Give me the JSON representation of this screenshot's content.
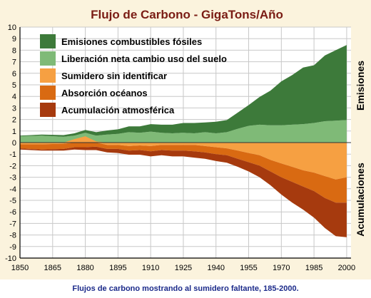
{
  "caption": "Flujos de carbono mostrando al sumidero faltante, 185-2000.",
  "chart_data": {
    "type": "area",
    "title": "Flujo de Carbono - GigaTons/Año",
    "xlabel": "",
    "ylabel": "",
    "side_labels": {
      "top": "Emisiones",
      "bottom": "Acumulaciones"
    },
    "xlim": [
      1850,
      2002
    ],
    "ylim": [
      -10,
      10
    ],
    "x_ticks": [
      1850,
      1865,
      1880,
      1895,
      1910,
      1925,
      1940,
      1955,
      1970,
      1985,
      2000
    ],
    "y_ticks": [
      10,
      9,
      8,
      7,
      6,
      5,
      4,
      3,
      2,
      1,
      0,
      -1,
      -2,
      -3,
      -4,
      -5,
      -6,
      -7,
      -8,
      -9,
      -10
    ],
    "legend_position": "top-left",
    "x": [
      1850,
      1860,
      1870,
      1875,
      1880,
      1885,
      1890,
      1895,
      1900,
      1905,
      1910,
      1915,
      1920,
      1925,
      1930,
      1935,
      1940,
      1945,
      1950,
      1955,
      1960,
      1965,
      1970,
      1975,
      1980,
      1985,
      1990,
      1995,
      2000
    ],
    "series": [
      {
        "name": "Emisiones combustibles fósiles",
        "color": "#3d7a3a",
        "values": [
          0.05,
          0.1,
          0.15,
          0.2,
          0.25,
          0.3,
          0.35,
          0.4,
          0.5,
          0.55,
          0.65,
          0.7,
          0.75,
          0.85,
          0.9,
          0.85,
          1.0,
          1.05,
          1.4,
          1.8,
          2.4,
          3.0,
          3.8,
          4.3,
          4.9,
          5.0,
          5.7,
          6.1,
          6.5
        ]
      },
      {
        "name": "Liberación neta cambio uso del suelo",
        "color": "#7fba77",
        "values": [
          0.55,
          0.6,
          0.5,
          0.6,
          0.85,
          0.6,
          0.7,
          0.75,
          0.9,
          0.85,
          0.95,
          0.85,
          0.8,
          0.85,
          0.8,
          0.9,
          0.8,
          0.9,
          1.2,
          1.45,
          1.55,
          1.5,
          1.5,
          1.55,
          1.6,
          1.7,
          1.85,
          1.9,
          1.95
        ]
      },
      {
        "name": "Sumidero sin identificar",
        "color": "#f6a042",
        "values": [
          -0.15,
          -0.15,
          -0.1,
          0.3,
          0.55,
          0.1,
          -0.2,
          -0.2,
          -0.3,
          -0.25,
          -0.3,
          -0.2,
          -0.2,
          -0.2,
          -0.2,
          -0.3,
          -0.4,
          -0.5,
          -0.7,
          -0.9,
          -1.1,
          -1.5,
          -1.8,
          -2.1,
          -2.4,
          -2.6,
          -2.9,
          -3.2,
          -3.0
        ]
      },
      {
        "name": "Absorción océanos",
        "color": "#d96a12",
        "values": [
          -0.35,
          -0.45,
          -0.45,
          -0.4,
          -0.4,
          -0.35,
          -0.35,
          -0.35,
          -0.4,
          -0.4,
          -0.45,
          -0.45,
          -0.5,
          -0.5,
          -0.55,
          -0.55,
          -0.6,
          -0.6,
          -0.7,
          -0.8,
          -0.9,
          -1.0,
          -1.2,
          -1.3,
          -1.4,
          -1.6,
          -1.9,
          -2.0,
          -2.2
        ]
      },
      {
        "name": "Acumulación atmosférica",
        "color": "#a63a0e",
        "values": [
          -0.1,
          -0.1,
          -0.15,
          -0.2,
          -0.25,
          -0.3,
          -0.3,
          -0.35,
          -0.35,
          -0.4,
          -0.45,
          -0.45,
          -0.5,
          -0.5,
          -0.55,
          -0.55,
          -0.6,
          -0.65,
          -0.7,
          -0.8,
          -1.0,
          -1.2,
          -1.5,
          -1.8,
          -2.0,
          -2.3,
          -2.6,
          -2.9,
          -3.0
        ]
      }
    ]
  }
}
